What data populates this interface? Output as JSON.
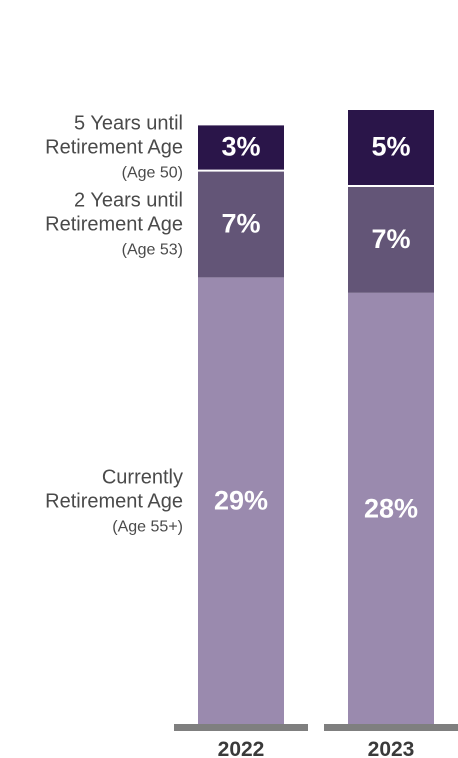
{
  "chart_data": {
    "type": "bar",
    "stacked": true,
    "categories": [
      "2022",
      "2023"
    ],
    "series": [
      {
        "label_lines": [
          "Currently",
          "Retirement Age"
        ],
        "sub_label": "(Age 55+)",
        "values": [
          29,
          28
        ],
        "value_labels": [
          "29%",
          "28%"
        ],
        "color": "#9a8aae"
      },
      {
        "label_lines": [
          "2 Years until",
          "Retirement Age"
        ],
        "sub_label": "(Age 53)",
        "values": [
          7,
          7
        ],
        "value_labels": [
          "7%",
          "7%"
        ],
        "color": "#635577"
      },
      {
        "label_lines": [
          "5 Years until",
          "Retirement Age"
        ],
        "sub_label": "(Age 50)",
        "values": [
          3,
          5
        ],
        "value_labels": [
          "3%",
          "5%"
        ],
        "color": "#2a1549"
      }
    ],
    "axis_color": "#7f7f7f",
    "legend_position": "left",
    "grid": false
  }
}
